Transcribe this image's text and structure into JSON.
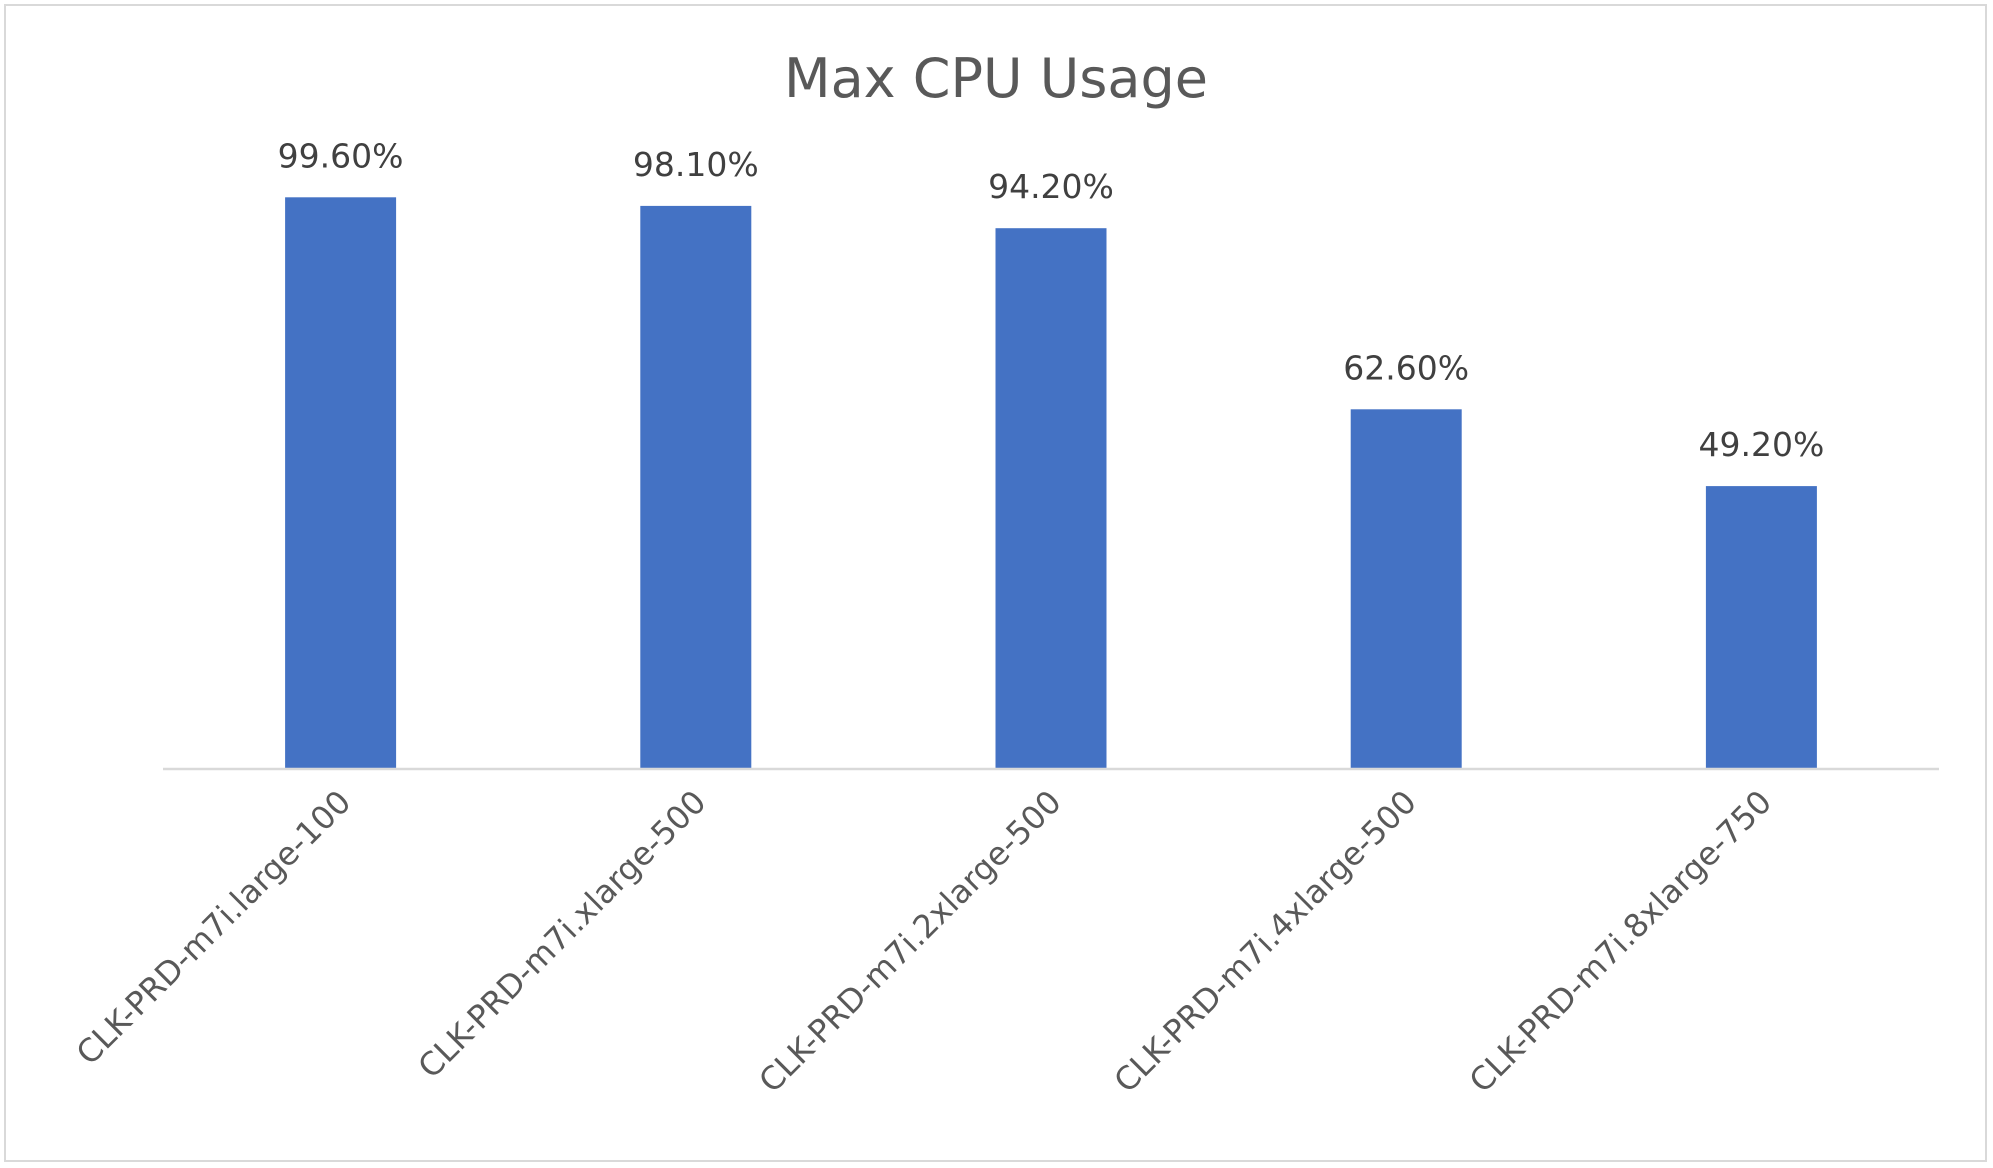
{
  "chart_data": {
    "type": "bar",
    "title": "Max CPU Usage",
    "categories": [
      "CLK-PRD-m7i.large-100",
      "CLK-PRD-m7i.xlarge-500",
      "CLK-PRD-m7i.2xlarge-500",
      "CLK-PRD-m7i.4xlarge-500",
      "CLK-PRD-m7i.8xlarge-750"
    ],
    "values": [
      99.6,
      98.1,
      94.2,
      62.6,
      49.2
    ],
    "data_labels": [
      "99.60%",
      "98.10%",
      "94.20%",
      "62.60%",
      "49.20%"
    ],
    "ylim": [
      0,
      100
    ],
    "grid": false,
    "legend": "none",
    "bar_color": "#4472C4",
    "axis_color": "#d9d9d9"
  }
}
